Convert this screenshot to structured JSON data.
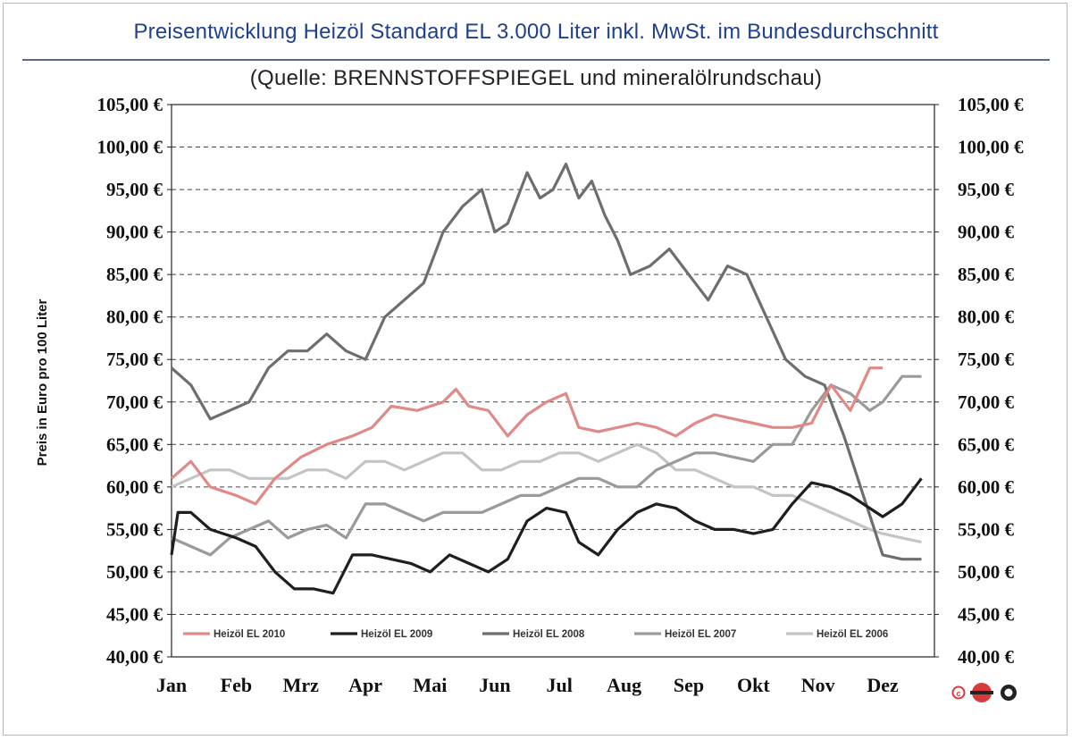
{
  "header": {
    "title": "Preisentwicklung  Heizöl  Standard EL 3.000 Liter inkl.  MwSt. im Bundesdurchschnitt",
    "subtitle": "(Quelle:  BRENNSTOFFSPIEGEL  und  mineralölrundschau)"
  },
  "chart_data": {
    "type": "line",
    "ylabel": "Preis in Euro pro 100 Liter",
    "ylim": [
      40,
      105
    ],
    "y_ticks": [
      "40,00 €",
      "45,00 €",
      "50,00 €",
      "55,00 €",
      "60,00 €",
      "65,00 €",
      "70,00 €",
      "75,00 €",
      "80,00 €",
      "85,00 €",
      "90,00 €",
      "95,00 €",
      "100,00 €",
      "105,00 €"
    ],
    "categories": [
      "Jan",
      "Feb",
      "Mrz",
      "Apr",
      "Mai",
      "Jun",
      "Jul",
      "Aug",
      "Sep",
      "Okt",
      "Nov",
      "Dez"
    ],
    "grid": true,
    "legend_position": "bottom",
    "series": [
      {
        "name": "Heizöl EL 2010",
        "color": "#e08a88",
        "x": [
          0,
          0.3,
          0.6,
          1.0,
          1.3,
          1.6,
          2.0,
          2.4,
          2.8,
          3.1,
          3.4,
          3.8,
          4.2,
          4.4,
          4.6,
          4.9,
          5.2,
          5.5,
          5.8,
          6.1,
          6.3,
          6.6,
          6.9,
          7.2,
          7.5,
          7.8,
          8.1,
          8.4,
          8.7,
          9.0,
          9.3,
          9.6,
          9.9,
          10.2,
          10.5,
          10.8,
          11.0
        ],
        "values": [
          61,
          63,
          60,
          59,
          58,
          61,
          63.5,
          65,
          66,
          67,
          69.5,
          69,
          70,
          71.5,
          69.5,
          69,
          66,
          68.5,
          70,
          71,
          67,
          66.5,
          67,
          67.5,
          67,
          66,
          67.5,
          68.5,
          68,
          67.5,
          67,
          67,
          67.5,
          72,
          69,
          74,
          74
        ]
      },
      {
        "name": "Heizöl EL 2009",
        "color": "#1f1f1f",
        "x": [
          0,
          0.1,
          0.3,
          0.6,
          1.0,
          1.3,
          1.6,
          1.9,
          2.2,
          2.5,
          2.8,
          3.1,
          3.4,
          3.7,
          4.0,
          4.3,
          4.6,
          4.9,
          5.2,
          5.5,
          5.8,
          6.1,
          6.3,
          6.6,
          6.9,
          7.2,
          7.5,
          7.8,
          8.1,
          8.4,
          8.7,
          9.0,
          9.3,
          9.6,
          9.9,
          10.2,
          10.5,
          10.8,
          11.0,
          11.3,
          11.6
        ],
        "values": [
          52,
          57,
          57,
          55,
          54,
          53,
          50,
          48,
          48,
          47.5,
          52,
          52,
          51.5,
          51,
          50,
          52,
          51,
          50,
          51.5,
          56,
          57.5,
          57,
          53.5,
          52,
          55,
          57,
          58,
          57.5,
          56,
          55,
          55,
          54.5,
          55,
          58,
          60.5,
          60,
          59,
          57.5,
          56.5,
          58,
          61
        ]
      },
      {
        "name": "Heizöl EL 2008",
        "color": "#6e6e6e",
        "x": [
          0,
          0.3,
          0.6,
          0.9,
          1.2,
          1.5,
          1.8,
          2.1,
          2.4,
          2.7,
          3.0,
          3.3,
          3.6,
          3.9,
          4.2,
          4.5,
          4.8,
          5.0,
          5.2,
          5.5,
          5.7,
          5.9,
          6.1,
          6.3,
          6.5,
          6.7,
          6.9,
          7.1,
          7.4,
          7.7,
          8.0,
          8.3,
          8.6,
          8.9,
          9.2,
          9.5,
          9.8,
          10.1,
          10.4,
          10.7,
          11.0,
          11.3,
          11.6
        ],
        "values": [
          74,
          72,
          68,
          69,
          70,
          74,
          76,
          76,
          78,
          76,
          75,
          80,
          82,
          84,
          90,
          93,
          95,
          90,
          91,
          97,
          94,
          95,
          98,
          94,
          96,
          92,
          89,
          85,
          86,
          88,
          85,
          82,
          86,
          85,
          80,
          75,
          73,
          72,
          66,
          59,
          52,
          51.5,
          51.5
        ]
      },
      {
        "name": "Heizöl EL 2007",
        "color": "#9a9a9a",
        "x": [
          0,
          0.3,
          0.6,
          0.9,
          1.2,
          1.5,
          1.8,
          2.1,
          2.4,
          2.7,
          3.0,
          3.3,
          3.6,
          3.9,
          4.2,
          4.5,
          4.8,
          5.1,
          5.4,
          5.7,
          6.0,
          6.3,
          6.6,
          6.9,
          7.2,
          7.5,
          7.8,
          8.1,
          8.4,
          8.7,
          9.0,
          9.3,
          9.6,
          9.9,
          10.2,
          10.5,
          10.8,
          11.0,
          11.3,
          11.6
        ],
        "values": [
          54,
          53,
          52,
          54,
          55,
          56,
          54,
          55,
          55.5,
          54,
          58,
          58,
          57,
          56,
          57,
          57,
          57,
          58,
          59,
          59,
          60,
          61,
          61,
          60,
          60,
          62,
          63,
          64,
          64,
          63.5,
          63,
          65,
          65,
          69,
          72,
          71,
          69,
          70,
          73,
          73
        ]
      },
      {
        "name": "Heizöl EL 2006",
        "color": "#c4c4c4",
        "x": [
          0,
          0.3,
          0.6,
          0.9,
          1.2,
          1.5,
          1.8,
          2.1,
          2.4,
          2.7,
          3.0,
          3.3,
          3.6,
          3.9,
          4.2,
          4.5,
          4.8,
          5.1,
          5.4,
          5.7,
          6.0,
          6.3,
          6.6,
          6.9,
          7.2,
          7.5,
          7.8,
          8.1,
          8.4,
          8.7,
          9.0,
          9.3,
          9.6,
          9.9,
          10.2,
          10.5,
          10.8,
          11.0,
          11.3,
          11.6
        ],
        "values": [
          60,
          61,
          62,
          62,
          61,
          61,
          61,
          62,
          62,
          61,
          63,
          63,
          62,
          63,
          64,
          64,
          62,
          62,
          63,
          63,
          64,
          64,
          63,
          64,
          65,
          64,
          62,
          62,
          61,
          60,
          60,
          59,
          59,
          58,
          57,
          56,
          55,
          54.5,
          54,
          53.5
        ]
      }
    ]
  }
}
